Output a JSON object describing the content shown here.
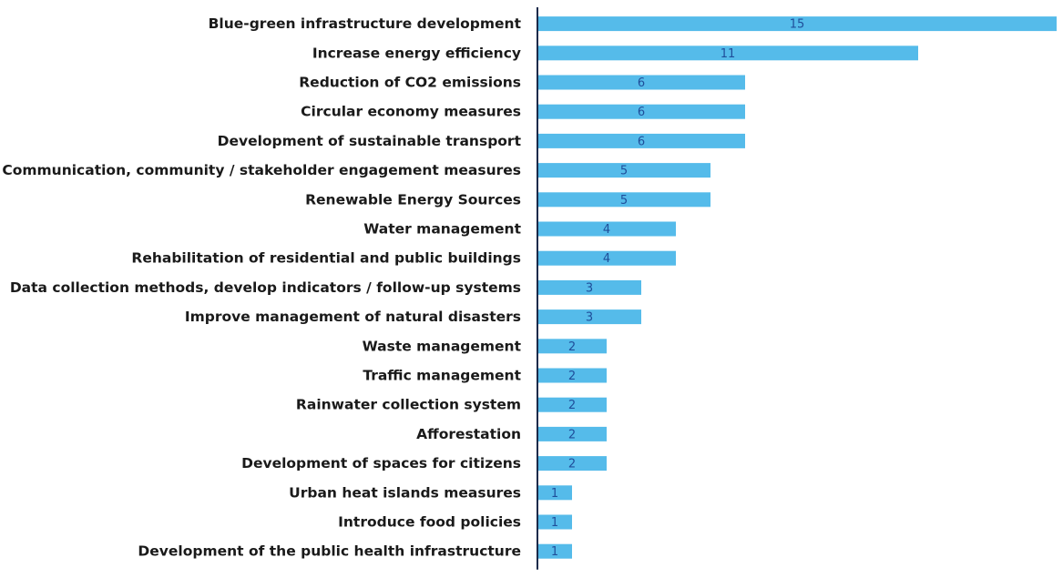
{
  "chart_data": {
    "type": "bar",
    "orientation": "horizontal",
    "categories": [
      "Blue-green infrastructure development",
      "Increase energy efficiency",
      "Reduction of CO2 emissions",
      "Circular economy measures",
      "Development of sustainable transport",
      "Communication, community / stakeholder engagement measures",
      "Renewable Energy Sources",
      "Water management",
      "Rehabilitation of residential and public buildings",
      "Data collection methods, develop indicators / follow-up systems",
      "Improve management of natural disasters",
      "Waste management",
      "Traffic management",
      "Rainwater collection system",
      "Afforestation",
      "Development of spaces for citizens",
      "Urban heat islands measures",
      "Introduce food policies",
      "Development of the public health infrastructure"
    ],
    "values": [
      15,
      11,
      6,
      6,
      6,
      5,
      5,
      4,
      4,
      3,
      3,
      2,
      2,
      2,
      2,
      2,
      1,
      1,
      1
    ],
    "title": "",
    "xlabel": "",
    "ylabel": "",
    "xlim": [
      0,
      15
    ],
    "grid": false,
    "legend": "none",
    "bar_color": "#55bbea",
    "axis_color": "#1a2a4a",
    "value_label_color": "#1f4e9a"
  }
}
